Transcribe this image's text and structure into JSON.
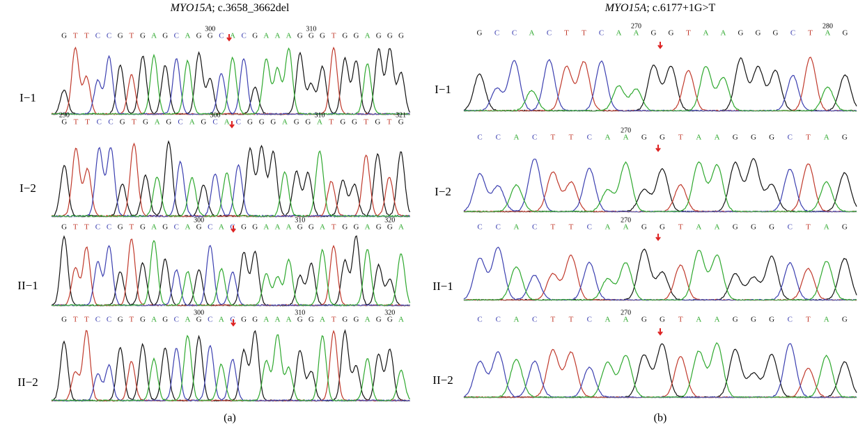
{
  "panels": [
    {
      "title_gene": "MYO15A",
      "title_rest": "; c.3658_3662del",
      "caption": "(a)",
      "tracks": [
        {
          "label": "I−1",
          "bases": [
            "G",
            "T",
            "T",
            "C",
            "C",
            "G",
            "T",
            "G",
            "A",
            "G",
            "C",
            "A",
            "G",
            "G",
            "C",
            "A",
            "C",
            "G",
            "A",
            "A",
            "A",
            "G",
            "G",
            "G",
            "T",
            "G",
            "G",
            "A",
            "G",
            "G",
            "G"
          ],
          "numbers": [
            "300",
            "310"
          ]
        },
        {
          "label": "I−2",
          "bases": [
            "G",
            "T",
            "T",
            "C",
            "C",
            "G",
            "T",
            "G",
            "A",
            "G",
            "C",
            "A",
            "G",
            "C",
            "A",
            "C",
            "G",
            "G",
            "G",
            "A",
            "G",
            "G",
            "A",
            "T",
            "G",
            "G",
            "T",
            "G",
            "T",
            "G"
          ],
          "numbers": [
            "290",
            "300",
            "310",
            "321"
          ]
        },
        {
          "label": "II−1",
          "bases": [
            "G",
            "T",
            "T",
            "C",
            "C",
            "G",
            "T",
            "G",
            "A",
            "G",
            "C",
            "A",
            "G",
            "C",
            "A",
            "C",
            "G",
            "G",
            "A",
            "A",
            "A",
            "G",
            "G",
            "A",
            "T",
            "G",
            "G",
            "A",
            "G",
            "G",
            "A"
          ],
          "numbers": [
            "300",
            "310",
            "320"
          ]
        },
        {
          "label": "II−2",
          "bases": [
            "G",
            "T",
            "T",
            "C",
            "C",
            "G",
            "T",
            "G",
            "A",
            "G",
            "C",
            "A",
            "G",
            "C",
            "A",
            "C",
            "G",
            "G",
            "A",
            "A",
            "A",
            "G",
            "G",
            "A",
            "T",
            "G",
            "G",
            "A",
            "G",
            "G",
            "A"
          ],
          "numbers": [
            "300",
            "310",
            "320"
          ]
        }
      ]
    },
    {
      "title_gene": "MYO15A",
      "title_rest": "; c.6177+1G>T",
      "caption": "(b)",
      "tracks": [
        {
          "label": "I−1",
          "bases": [
            "G",
            "C",
            "C",
            "A",
            "C",
            "T",
            "T",
            "C",
            "A",
            "A",
            "G",
            "G",
            "T",
            "A",
            "A",
            "G",
            "G",
            "G",
            "C",
            "T",
            "A",
            "G"
          ],
          "numbers": [
            "270",
            "280"
          ]
        },
        {
          "label": "I−2",
          "bases": [
            "C",
            "C",
            "A",
            "C",
            "T",
            "T",
            "C",
            "A",
            "A",
            "G",
            "G",
            "T",
            "A",
            "A",
            "G",
            "G",
            "G",
            "C",
            "T",
            "A",
            "G"
          ],
          "numbers": [
            "270"
          ]
        },
        {
          "label": "II−1",
          "bases": [
            "C",
            "C",
            "A",
            "C",
            "T",
            "T",
            "C",
            "A",
            "A",
            "G",
            "G",
            "T",
            "A",
            "A",
            "G",
            "G",
            "G",
            "C",
            "T",
            "A",
            "G"
          ],
          "numbers": [
            "270"
          ]
        },
        {
          "label": "II−2",
          "bases": [
            "C",
            "C",
            "A",
            "C",
            "T",
            "T",
            "C",
            "A",
            "A",
            "G",
            "G",
            "T",
            "A",
            "A",
            "G",
            "G",
            "G",
            "C",
            "T",
            "A",
            "G"
          ],
          "numbers": [
            "270"
          ]
        }
      ]
    }
  ]
}
